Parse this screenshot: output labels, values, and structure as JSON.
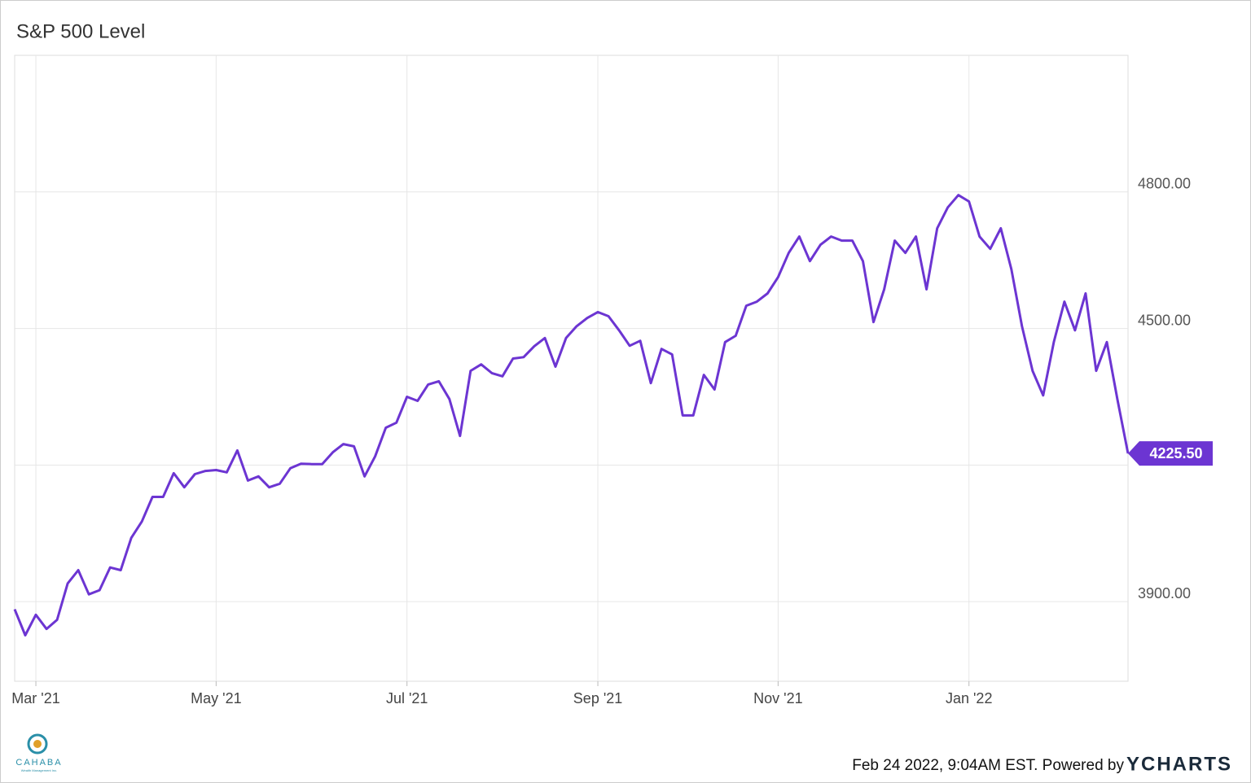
{
  "chart_data": {
    "type": "line",
    "title": "S&P 500 Level",
    "categories": [
      null,
      null,
      "Mar '21",
      null,
      null,
      null,
      null,
      null,
      null,
      null,
      null,
      null,
      null,
      null,
      null,
      null,
      null,
      null,
      null,
      "May '21",
      null,
      null,
      null,
      null,
      null,
      null,
      null,
      null,
      null,
      null,
      null,
      null,
      null,
      null,
      null,
      null,
      null,
      "Jul '21",
      null,
      null,
      null,
      null,
      null,
      null,
      null,
      null,
      null,
      null,
      null,
      null,
      null,
      null,
      null,
      null,
      null,
      "Sep '21",
      null,
      null,
      null,
      null,
      null,
      null,
      null,
      null,
      null,
      null,
      null,
      null,
      null,
      null,
      null,
      null,
      "Nov '21",
      null,
      null,
      null,
      null,
      null,
      null,
      null,
      null,
      null,
      null,
      null,
      null,
      null,
      null,
      null,
      null,
      null,
      "Jan '22",
      null,
      null,
      null,
      null,
      null,
      null,
      null,
      null,
      null,
      null,
      null,
      null,
      null,
      null,
      null
    ],
    "series": [
      {
        "name": "S&P 500 Level",
        "color": "#6c35d2",
        "values": [
          3883,
          3826,
          3871,
          3840,
          3860,
          3940,
          3969,
          3916,
          3925,
          3975,
          3969,
          4040,
          4076,
          4130,
          4130,
          4182,
          4151,
          4180,
          4187,
          4189,
          4184,
          4232,
          4166,
          4175,
          4151,
          4159,
          4193,
          4203,
          4202,
          4202,
          4228,
          4246,
          4241,
          4175,
          4219,
          4282,
          4293,
          4350,
          4341,
          4377,
          4384,
          4345,
          4264,
          4407,
          4421,
          4402,
          4395,
          4434,
          4437,
          4461,
          4479,
          4416,
          4479,
          4505,
          4523,
          4536,
          4527,
          4496,
          4462,
          4473,
          4380,
          4455,
          4443,
          4309,
          4309,
          4398,
          4366,
          4470,
          4484,
          4550,
          4559,
          4577,
          4613,
          4666,
          4702,
          4648,
          4684,
          4702,
          4693,
          4693,
          4648,
          4514,
          4586,
          4693,
          4666,
          4702,
          4586,
          4720,
          4766,
          4793,
          4779,
          4702,
          4675,
          4720,
          4630,
          4505,
          4407,
          4353,
          4470,
          4559,
          4496,
          4577,
          4407,
          4470,
          4344,
          4225.5
        ],
        "value_labels": [
          null,
          null,
          null,
          null,
          null,
          null,
          null,
          null,
          null,
          null,
          null,
          null,
          null,
          null,
          null,
          null,
          null,
          null,
          null,
          null,
          null,
          null,
          null,
          null,
          null,
          null,
          null,
          null,
          null,
          null,
          null,
          null,
          null,
          null,
          null,
          null,
          null,
          null,
          null,
          null,
          null,
          null,
          null,
          null,
          null,
          null,
          null,
          null,
          null,
          null,
          null,
          null,
          null,
          null,
          null,
          null,
          null,
          null,
          null,
          null,
          null,
          null,
          null,
          null,
          null,
          null,
          null,
          null,
          null,
          null,
          null,
          null,
          null,
          null,
          null,
          null,
          null,
          null,
          null,
          null,
          null,
          null,
          null,
          null,
          null,
          null,
          null,
          null,
          null,
          null,
          null,
          null,
          null,
          null,
          null,
          null,
          null,
          null,
          null,
          null,
          null,
          null,
          null,
          null,
          null,
          "4225.50"
        ]
      }
    ],
    "ylim": [
      3725,
      5100
    ],
    "yticks": [
      {
        "value": 3900,
        "label": "3900.00"
      },
      {
        "value": 4200,
        "label": null
      },
      {
        "value": 4500,
        "label": "4500.00"
      },
      {
        "value": 4800,
        "label": "4800.00"
      }
    ],
    "grid": true,
    "footer": {
      "timestamp": "Feb 24 2022, 9:04AM EST. Powered by",
      "brand": "YCHARTS",
      "logo_name": "CAHABA",
      "logo_sub": "Wealth Management Inc."
    }
  }
}
